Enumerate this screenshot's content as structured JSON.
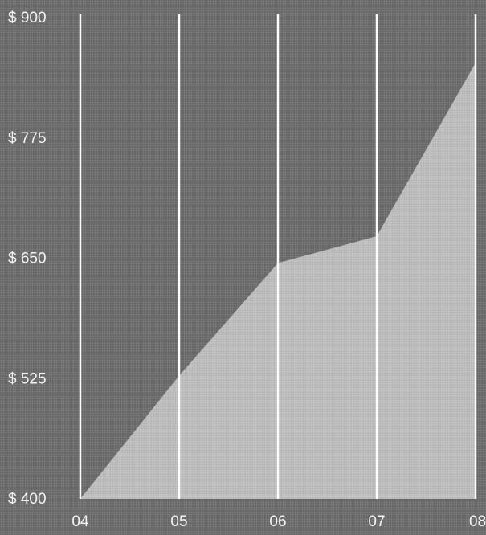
{
  "chart_data": {
    "type": "area",
    "x": [
      "04",
      "05",
      "06",
      "07",
      "08"
    ],
    "points": [
      {
        "x": 2004.0,
        "y": 400
      },
      {
        "x": 2005.0,
        "y": 528
      },
      {
        "x": 2006.0,
        "y": 645
      },
      {
        "x": 2007.0,
        "y": 673
      },
      {
        "x": 2008.0,
        "y": 853
      }
    ],
    "y_ticks": [
      "$ 900",
      "$ 775",
      "$ 650",
      "$ 525",
      "$ 400"
    ],
    "y_tick_values": [
      900,
      775,
      650,
      525,
      400
    ],
    "ylim": [
      400,
      900
    ],
    "xlim": [
      2004,
      2008
    ],
    "title": "",
    "xlabel": "",
    "ylabel": "",
    "grid": "vertical",
    "colors": {
      "background": "#6e6e6e",
      "area_fill": "#bdbdbd",
      "gridline": "#ffffff",
      "text": "#f4f4f4"
    }
  }
}
